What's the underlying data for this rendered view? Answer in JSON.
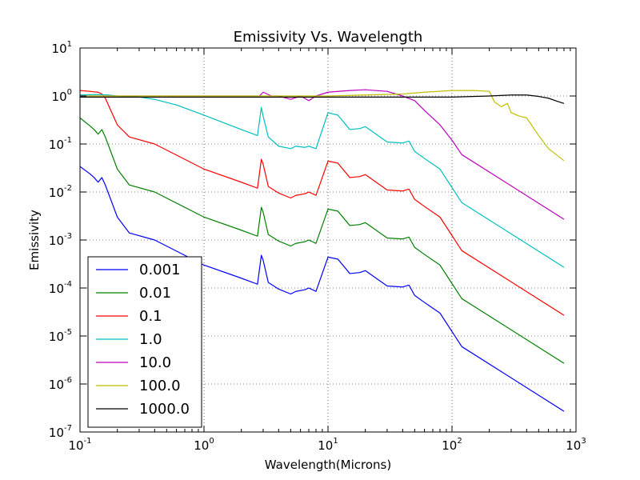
{
  "chart_data": {
    "type": "line",
    "title": "Emissivity Vs. Wavelength",
    "xlabel": "Wavelength(Microns)",
    "ylabel": "Emissivity",
    "xscale": "log",
    "yscale": "log",
    "xlim": [
      0.1,
      1000
    ],
    "ylim": [
      1e-07,
      10
    ],
    "grid": true,
    "legend_position": "lower-left",
    "x_ticks": [
      {
        "value": 0.1,
        "base": "10",
        "exp": "-1"
      },
      {
        "value": 1,
        "base": "10",
        "exp": "0"
      },
      {
        "value": 10,
        "base": "10",
        "exp": "1"
      },
      {
        "value": 100,
        "base": "10",
        "exp": "2"
      },
      {
        "value": 1000,
        "base": "10",
        "exp": "3"
      }
    ],
    "y_ticks": [
      {
        "value": 1e-07,
        "base": "10",
        "exp": "-7"
      },
      {
        "value": 1e-06,
        "base": "10",
        "exp": "-6"
      },
      {
        "value": 1e-05,
        "base": "10",
        "exp": "-5"
      },
      {
        "value": 0.0001,
        "base": "10",
        "exp": "-4"
      },
      {
        "value": 0.001,
        "base": "10",
        "exp": "-3"
      },
      {
        "value": 0.01,
        "base": "10",
        "exp": "-2"
      },
      {
        "value": 0.1,
        "base": "10",
        "exp": "-1"
      },
      {
        "value": 1,
        "base": "10",
        "exp": "0"
      },
      {
        "value": 10,
        "base": "10",
        "exp": "1"
      }
    ],
    "series": [
      {
        "name": "0.001",
        "color": "#0000ff",
        "x": [
          0.1,
          0.12,
          0.13,
          0.14,
          0.15,
          0.16,
          0.2,
          0.25,
          0.4,
          1.0,
          2.0,
          2.7,
          2.9,
          3.0,
          3.3,
          4.0,
          5.0,
          5.5,
          6.5,
          7.0,
          8.0,
          10,
          12,
          15,
          18,
          20,
          30,
          40,
          45,
          50,
          60,
          80,
          120,
          800
        ],
        "y": [
          0.034,
          0.024,
          0.02,
          0.016,
          0.02,
          0.014,
          0.003,
          0.0014,
          0.001,
          0.0003,
          0.00016,
          0.00012,
          0.00048,
          0.00038,
          0.00013,
          9.5e-05,
          7.5e-05,
          8.5e-05,
          9.2e-05,
          0.0001,
          8.5e-05,
          0.00044,
          0.0004,
          0.0002,
          0.00021,
          0.00023,
          0.00011,
          0.000105,
          0.000115,
          7e-05,
          5e-05,
          3e-05,
          6e-06,
          2.7e-07
        ]
      },
      {
        "name": "0.01",
        "color": "#008000",
        "x": [
          0.1,
          0.12,
          0.13,
          0.14,
          0.15,
          0.16,
          0.2,
          0.25,
          0.4,
          1.0,
          2.0,
          2.7,
          2.9,
          3.0,
          3.3,
          4.0,
          5.0,
          5.5,
          6.5,
          7.0,
          8.0,
          10,
          12,
          15,
          18,
          20,
          30,
          40,
          45,
          50,
          60,
          80,
          120,
          800
        ],
        "y": [
          0.35,
          0.24,
          0.2,
          0.16,
          0.2,
          0.14,
          0.03,
          0.014,
          0.01,
          0.003,
          0.0016,
          0.0012,
          0.0048,
          0.0038,
          0.0013,
          0.00095,
          0.00075,
          0.00085,
          0.00092,
          0.001,
          0.00085,
          0.0044,
          0.004,
          0.002,
          0.0021,
          0.0023,
          0.0011,
          0.00105,
          0.00115,
          0.0007,
          0.0005,
          0.0003,
          6e-05,
          2.7e-06
        ]
      },
      {
        "name": "0.1",
        "color": "#ff0000",
        "x": [
          0.1,
          0.12,
          0.13,
          0.14,
          0.15,
          0.16,
          0.2,
          0.25,
          0.4,
          1.0,
          2.0,
          2.7,
          2.9,
          3.0,
          3.3,
          4.0,
          5.0,
          5.5,
          6.5,
          7.0,
          8.0,
          10,
          12,
          15,
          18,
          20,
          30,
          40,
          45,
          50,
          60,
          80,
          120,
          800
        ],
        "y": [
          1.3,
          1.25,
          1.22,
          1.2,
          1.1,
          0.9,
          0.25,
          0.14,
          0.1,
          0.03,
          0.016,
          0.012,
          0.048,
          0.038,
          0.013,
          0.0095,
          0.0075,
          0.0085,
          0.0092,
          0.01,
          0.0085,
          0.044,
          0.04,
          0.02,
          0.021,
          0.023,
          0.011,
          0.0105,
          0.0115,
          0.007,
          0.005,
          0.003,
          0.0006,
          2.7e-05
        ]
      },
      {
        "name": "1.0",
        "color": "#00bfbf",
        "x": [
          0.1,
          0.14,
          0.17,
          0.2,
          0.3,
          0.4,
          0.6,
          1.0,
          2.0,
          2.7,
          2.9,
          3.0,
          3.3,
          4.0,
          5.0,
          5.5,
          6.5,
          7.0,
          8.0,
          10,
          12,
          15,
          18,
          20,
          30,
          40,
          45,
          50,
          60,
          80,
          120,
          800
        ],
        "y": [
          1.05,
          1.07,
          1.05,
          1.0,
          0.95,
          0.85,
          0.65,
          0.4,
          0.2,
          0.15,
          0.58,
          0.38,
          0.14,
          0.09,
          0.08,
          0.09,
          0.085,
          0.09,
          0.08,
          0.45,
          0.4,
          0.2,
          0.21,
          0.23,
          0.11,
          0.105,
          0.115,
          0.07,
          0.05,
          0.03,
          0.006,
          0.00027
        ]
      },
      {
        "name": "10.0",
        "color": "#bf00bf",
        "x": [
          0.1,
          0.3,
          1.0,
          2.0,
          2.8,
          3.0,
          3.5,
          4.0,
          5.0,
          6.0,
          7.0,
          8.0,
          10,
          15,
          20,
          30,
          40,
          50,
          60,
          80,
          100,
          120,
          800
        ],
        "y": [
          1.0,
          1.0,
          1.0,
          1.0,
          1.0,
          1.2,
          1.0,
          1.0,
          0.85,
          1.0,
          0.8,
          1.0,
          1.2,
          1.3,
          1.35,
          1.25,
          1.0,
          0.8,
          0.5,
          0.25,
          0.12,
          0.06,
          0.0027
        ]
      },
      {
        "name": "100.0",
        "color": "#bfbf00",
        "x": [
          0.1,
          1.0,
          5.0,
          10,
          20,
          40,
          60,
          100,
          150,
          200,
          220,
          250,
          280,
          300,
          350,
          400,
          500,
          600,
          800
        ],
        "y": [
          1.0,
          1.0,
          1.0,
          1.0,
          1.05,
          1.1,
          1.2,
          1.3,
          1.3,
          1.25,
          0.75,
          0.6,
          0.7,
          0.45,
          0.38,
          0.35,
          0.15,
          0.08,
          0.045
        ]
      },
      {
        "name": "1000.0",
        "color": "#000000",
        "x": [
          0.1,
          0.5,
          1.0,
          5.0,
          10,
          20,
          50,
          100,
          200,
          300,
          400,
          500,
          600,
          700,
          800
        ],
        "y": [
          0.95,
          0.95,
          0.95,
          0.95,
          0.95,
          0.95,
          0.95,
          0.95,
          1.0,
          1.05,
          1.05,
          0.98,
          0.9,
          0.78,
          0.7
        ]
      }
    ]
  }
}
